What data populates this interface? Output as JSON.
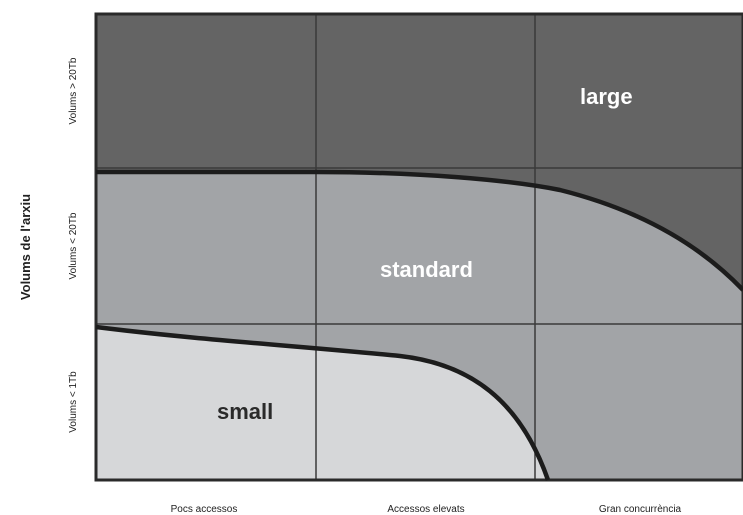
{
  "diagram": {
    "y_axis_title": "Volums de l'arxiu",
    "rows": [
      {
        "label": "Volums > 20Tb"
      },
      {
        "label": "Volums < 20Tb"
      },
      {
        "label": "Volums < 1Tb"
      }
    ],
    "columns": [
      {
        "label": "Pocs accessos"
      },
      {
        "label": "Accessos elevats"
      },
      {
        "label": "Gran concurrència"
      }
    ],
    "regions": {
      "large": "large",
      "standard": "standard",
      "small": "small"
    }
  },
  "colors": {
    "large": "#646464",
    "standard": "#a2a4a7",
    "small": "#d6d7d9",
    "grid": "#3a3a3a",
    "boundary": "#1c1c1c"
  }
}
